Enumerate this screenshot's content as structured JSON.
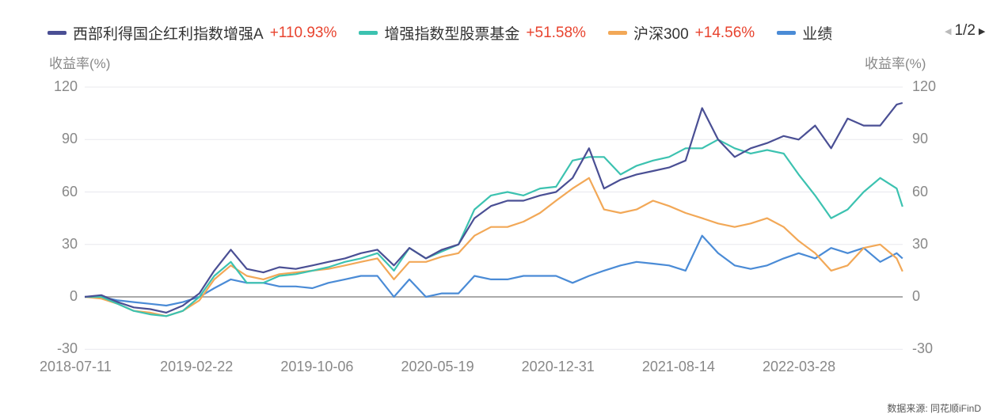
{
  "legend": {
    "items": [
      {
        "name": "西部利得国企红利指数增强A",
        "value": "+110.93%",
        "color": "#4a4f94"
      },
      {
        "name": "增强指数型股票基金",
        "value": "+51.58%",
        "color": "#3cc2b0"
      },
      {
        "name": "沪深300",
        "value": "+14.56%",
        "color": "#f2a857"
      },
      {
        "name": "业绩",
        "value": "",
        "color": "#4a8bd6"
      }
    ],
    "page": "1/2"
  },
  "source": "数据来源: 同花顺iFinD",
  "chart_data": {
    "type": "line",
    "ylabel_left": "收益率(%)",
    "ylabel_right": "收益率(%)",
    "ylim": [
      -30,
      120
    ],
    "yticks": [
      "120",
      "90",
      "60",
      "30",
      "0",
      "-30"
    ],
    "xticks": [
      "2018-07-11",
      "2019-02-22",
      "2019-10-06",
      "2020-05-19",
      "2020-12-31",
      "2021-08-14",
      "2022-03-28"
    ],
    "grid": true,
    "legend_position": "top",
    "x": [
      "2018-07-11",
      "2018-08-11",
      "2018-09-11",
      "2018-10-11",
      "2018-11-11",
      "2018-12-11",
      "2019-01-11",
      "2019-02-11",
      "2019-03-11",
      "2019-04-11",
      "2019-05-11",
      "2019-06-11",
      "2019-07-11",
      "2019-08-11",
      "2019-09-11",
      "2019-10-11",
      "2019-11-11",
      "2019-12-11",
      "2020-01-11",
      "2020-02-11",
      "2020-03-11",
      "2020-04-11",
      "2020-05-11",
      "2020-06-11",
      "2020-07-11",
      "2020-08-11",
      "2020-09-11",
      "2020-10-11",
      "2020-11-11",
      "2020-12-11",
      "2021-01-11",
      "2021-02-11",
      "2021-03-11",
      "2021-04-11",
      "2021-05-11",
      "2021-06-11",
      "2021-07-11",
      "2021-08-11",
      "2021-09-11",
      "2021-10-11",
      "2021-11-11",
      "2021-12-11",
      "2022-01-11",
      "2022-02-11",
      "2022-03-11",
      "2022-04-11",
      "2022-05-11",
      "2022-06-11",
      "2022-07-11",
      "2022-08-11",
      "2022-09-11",
      "2022-09-22"
    ],
    "series": [
      {
        "name": "西部利得国企红利指数增强A",
        "color": "#4a4f94",
        "values": [
          0,
          1,
          -3,
          -6,
          -7,
          -9,
          -5,
          2,
          15,
          27,
          16,
          14,
          17,
          16,
          18,
          20,
          22,
          25,
          27,
          18,
          28,
          22,
          27,
          30,
          45,
          52,
          55,
          55,
          58,
          60,
          68,
          85,
          62,
          67,
          70,
          72,
          74,
          78,
          108,
          90,
          80,
          85,
          88,
          92,
          90,
          98,
          85,
          102,
          98,
          98,
          110,
          110.93
        ]
      },
      {
        "name": "增强指数型股票基金",
        "color": "#3cc2b0",
        "values": [
          0,
          0,
          -4,
          -8,
          -10,
          -11,
          -8,
          0,
          12,
          20,
          8,
          8,
          12,
          13,
          15,
          17,
          20,
          22,
          25,
          15,
          28,
          22,
          26,
          30,
          50,
          58,
          60,
          58,
          62,
          63,
          78,
          80,
          80,
          70,
          75,
          78,
          80,
          85,
          85,
          90,
          85,
          82,
          84,
          82,
          70,
          58,
          45,
          50,
          60,
          68,
          62,
          51.58
        ]
      },
      {
        "name": "沪深300",
        "color": "#f2a857",
        "values": [
          0,
          -1,
          -4,
          -8,
          -9,
          -11,
          -8,
          -2,
          10,
          18,
          12,
          10,
          13,
          14,
          15,
          16,
          18,
          20,
          22,
          10,
          20,
          20,
          23,
          25,
          35,
          40,
          40,
          43,
          48,
          55,
          62,
          68,
          50,
          48,
          50,
          55,
          52,
          48,
          45,
          42,
          40,
          42,
          45,
          40,
          32,
          25,
          15,
          18,
          28,
          30,
          22,
          14.56
        ]
      },
      {
        "name": "业绩",
        "color": "#4a8bd6",
        "values": [
          0,
          0,
          -2,
          -3,
          -4,
          -5,
          -3,
          0,
          5,
          10,
          8,
          8,
          6,
          6,
          5,
          8,
          10,
          12,
          12,
          0,
          10,
          0,
          2,
          2,
          12,
          10,
          10,
          12,
          12,
          12,
          8,
          12,
          15,
          18,
          20,
          19,
          18,
          15,
          35,
          25,
          18,
          16,
          18,
          22,
          25,
          22,
          28,
          25,
          28,
          20,
          25,
          22
        ]
      }
    ]
  }
}
